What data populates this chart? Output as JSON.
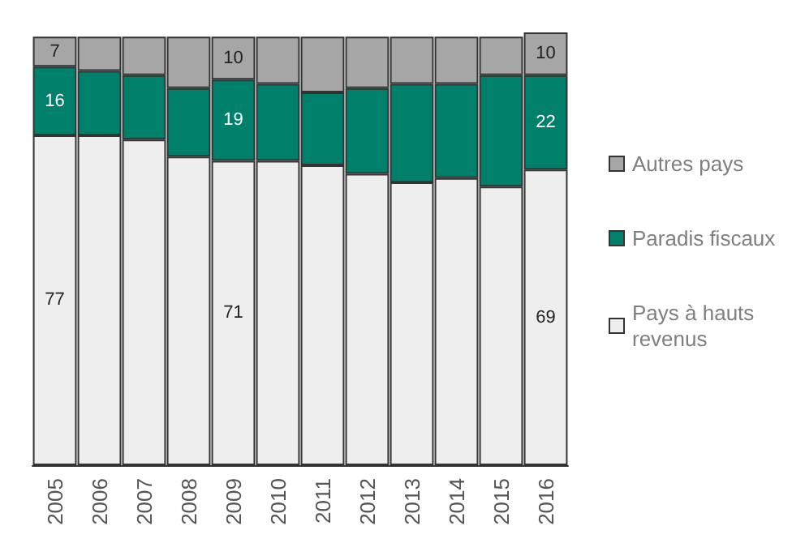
{
  "chart_data": {
    "type": "bar",
    "stacked": true,
    "legend": "right",
    "categories": [
      "2005",
      "2006",
      "2007",
      "2008",
      "2009",
      "2010",
      "2011",
      "2012",
      "2013",
      "2014",
      "2015",
      "2016"
    ],
    "series": [
      {
        "name": "Pays à hauts revenus",
        "color": "#eeeeee",
        "values": [
          77,
          77,
          76,
          72,
          71,
          71,
          70,
          68,
          66,
          67,
          65,
          69
        ],
        "value_labels": [
          "77",
          null,
          null,
          null,
          "71",
          null,
          null,
          null,
          null,
          null,
          null,
          "69"
        ]
      },
      {
        "name": "Paradis fiscaux",
        "color": "#00806a",
        "values": [
          16,
          15,
          15,
          16,
          19,
          18,
          17,
          20,
          23,
          22,
          26,
          22
        ],
        "value_labels": [
          "16",
          null,
          null,
          null,
          "19",
          null,
          null,
          null,
          null,
          null,
          null,
          "22"
        ]
      },
      {
        "name": "Autres pays",
        "color": "#a6a6a6",
        "values": [
          7,
          8,
          9,
          12,
          10,
          11,
          13,
          12,
          11,
          11,
          9,
          10
        ],
        "value_labels": [
          "7",
          null,
          null,
          null,
          "10",
          null,
          null,
          null,
          null,
          null,
          null,
          "10"
        ]
      }
    ]
  }
}
